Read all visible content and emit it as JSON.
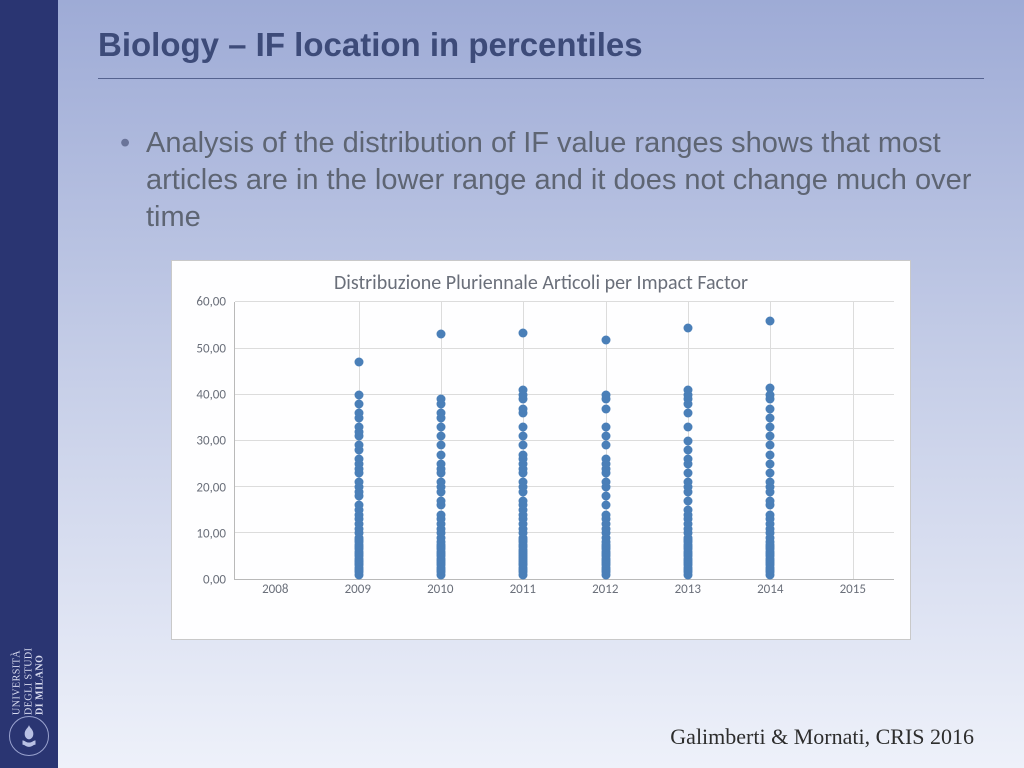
{
  "slide": {
    "title": "Biology – IF location in percentiles",
    "bullet": "Analysis of the distribution of IF value ranges shows that most articles are in the lower range and it does not change much over time",
    "attribution": "Galimberti & Mornati, CRIS 2016"
  },
  "sidebar": {
    "uni_line1": "UNIVERSITÀ",
    "uni_line2": "DEGLI STUDI",
    "uni_line3": "DI MILANO"
  },
  "chart": {
    "type": "scatter",
    "title": "Distribuzione Pluriennale Articoli per Impact Factor",
    "title_fontsize": 20,
    "title_color": "#6a6f7a",
    "background_color": "#fefeff",
    "border_color": "#c9c9c9",
    "grid_color": "#dcdcdc",
    "axis_color": "#b9b9b9",
    "label_color": "#6a6f7a",
    "label_fontsize": 13,
    "point_color": "#4a7fb8",
    "point_size": 9,
    "ylim": [
      0,
      60
    ],
    "ytick_step": 10,
    "ytick_labels": [
      "0,00",
      "10,00",
      "20,00",
      "30,00",
      "40,00",
      "50,00",
      "60,00"
    ],
    "x_categories": [
      "2008",
      "2009",
      "2010",
      "2011",
      "2012",
      "2013",
      "2014",
      "2015"
    ],
    "series": {
      "2009": [
        1,
        1.5,
        2,
        2.5,
        3,
        3.3,
        3.7,
        4,
        4.5,
        5,
        5.5,
        6,
        6.5,
        7,
        7.5,
        8,
        8.5,
        9,
        10,
        11,
        12,
        13,
        14,
        15,
        16,
        18,
        19,
        20,
        21,
        23,
        24,
        25,
        26,
        28,
        29,
        31,
        32,
        33,
        35,
        36,
        38,
        40,
        47
      ],
      "2010": [
        1,
        1.6,
        2,
        2.4,
        3,
        3.5,
        4,
        4.4,
        5,
        5.5,
        6,
        6.5,
        7,
        7.5,
        8,
        9,
        10,
        11,
        12,
        13,
        14,
        16,
        17,
        19,
        20,
        21,
        23,
        24,
        25,
        27,
        29,
        31,
        33,
        35,
        36,
        38,
        39,
        53.2
      ],
      "2011": [
        1,
        1.5,
        2,
        2.4,
        3,
        3.4,
        3.8,
        4.2,
        4.7,
        5,
        5.5,
        6,
        6.4,
        7,
        7.5,
        8,
        8.5,
        9,
        10,
        11,
        12,
        13,
        14,
        15,
        16,
        17,
        19,
        20,
        21,
        23,
        24,
        25,
        26,
        27,
        29,
        31,
        33,
        36,
        37,
        39,
        40,
        41,
        53.3
      ],
      "2012": [
        1,
        1.6,
        2,
        2.5,
        3,
        3.5,
        4,
        4.5,
        5,
        5.5,
        6,
        6.5,
        7,
        7.5,
        8,
        9,
        10,
        11,
        12,
        13,
        14,
        16,
        18,
        20,
        21,
        23,
        24,
        25,
        26,
        29,
        31,
        33,
        37,
        39,
        40,
        51.8
      ],
      "2013": [
        1,
        1.5,
        2,
        2.4,
        3,
        3.5,
        4,
        4.5,
        5,
        5.5,
        6,
        6.5,
        7,
        7.5,
        8,
        8.5,
        9,
        10,
        11,
        12,
        13,
        14,
        15,
        17,
        19,
        20,
        21,
        23,
        25,
        26,
        28,
        30,
        33,
        36,
        38,
        39,
        40,
        41,
        54.5
      ],
      "2014": [
        1,
        1.6,
        2,
        2.5,
        3,
        3.5,
        4,
        4.5,
        5,
        5.5,
        6,
        6.5,
        7,
        7.5,
        8,
        9,
        10,
        11,
        12,
        13,
        14,
        16,
        17,
        19,
        20,
        21,
        23,
        25,
        27,
        29,
        31,
        33,
        35,
        37,
        39,
        40,
        41.5,
        56
      ]
    }
  }
}
